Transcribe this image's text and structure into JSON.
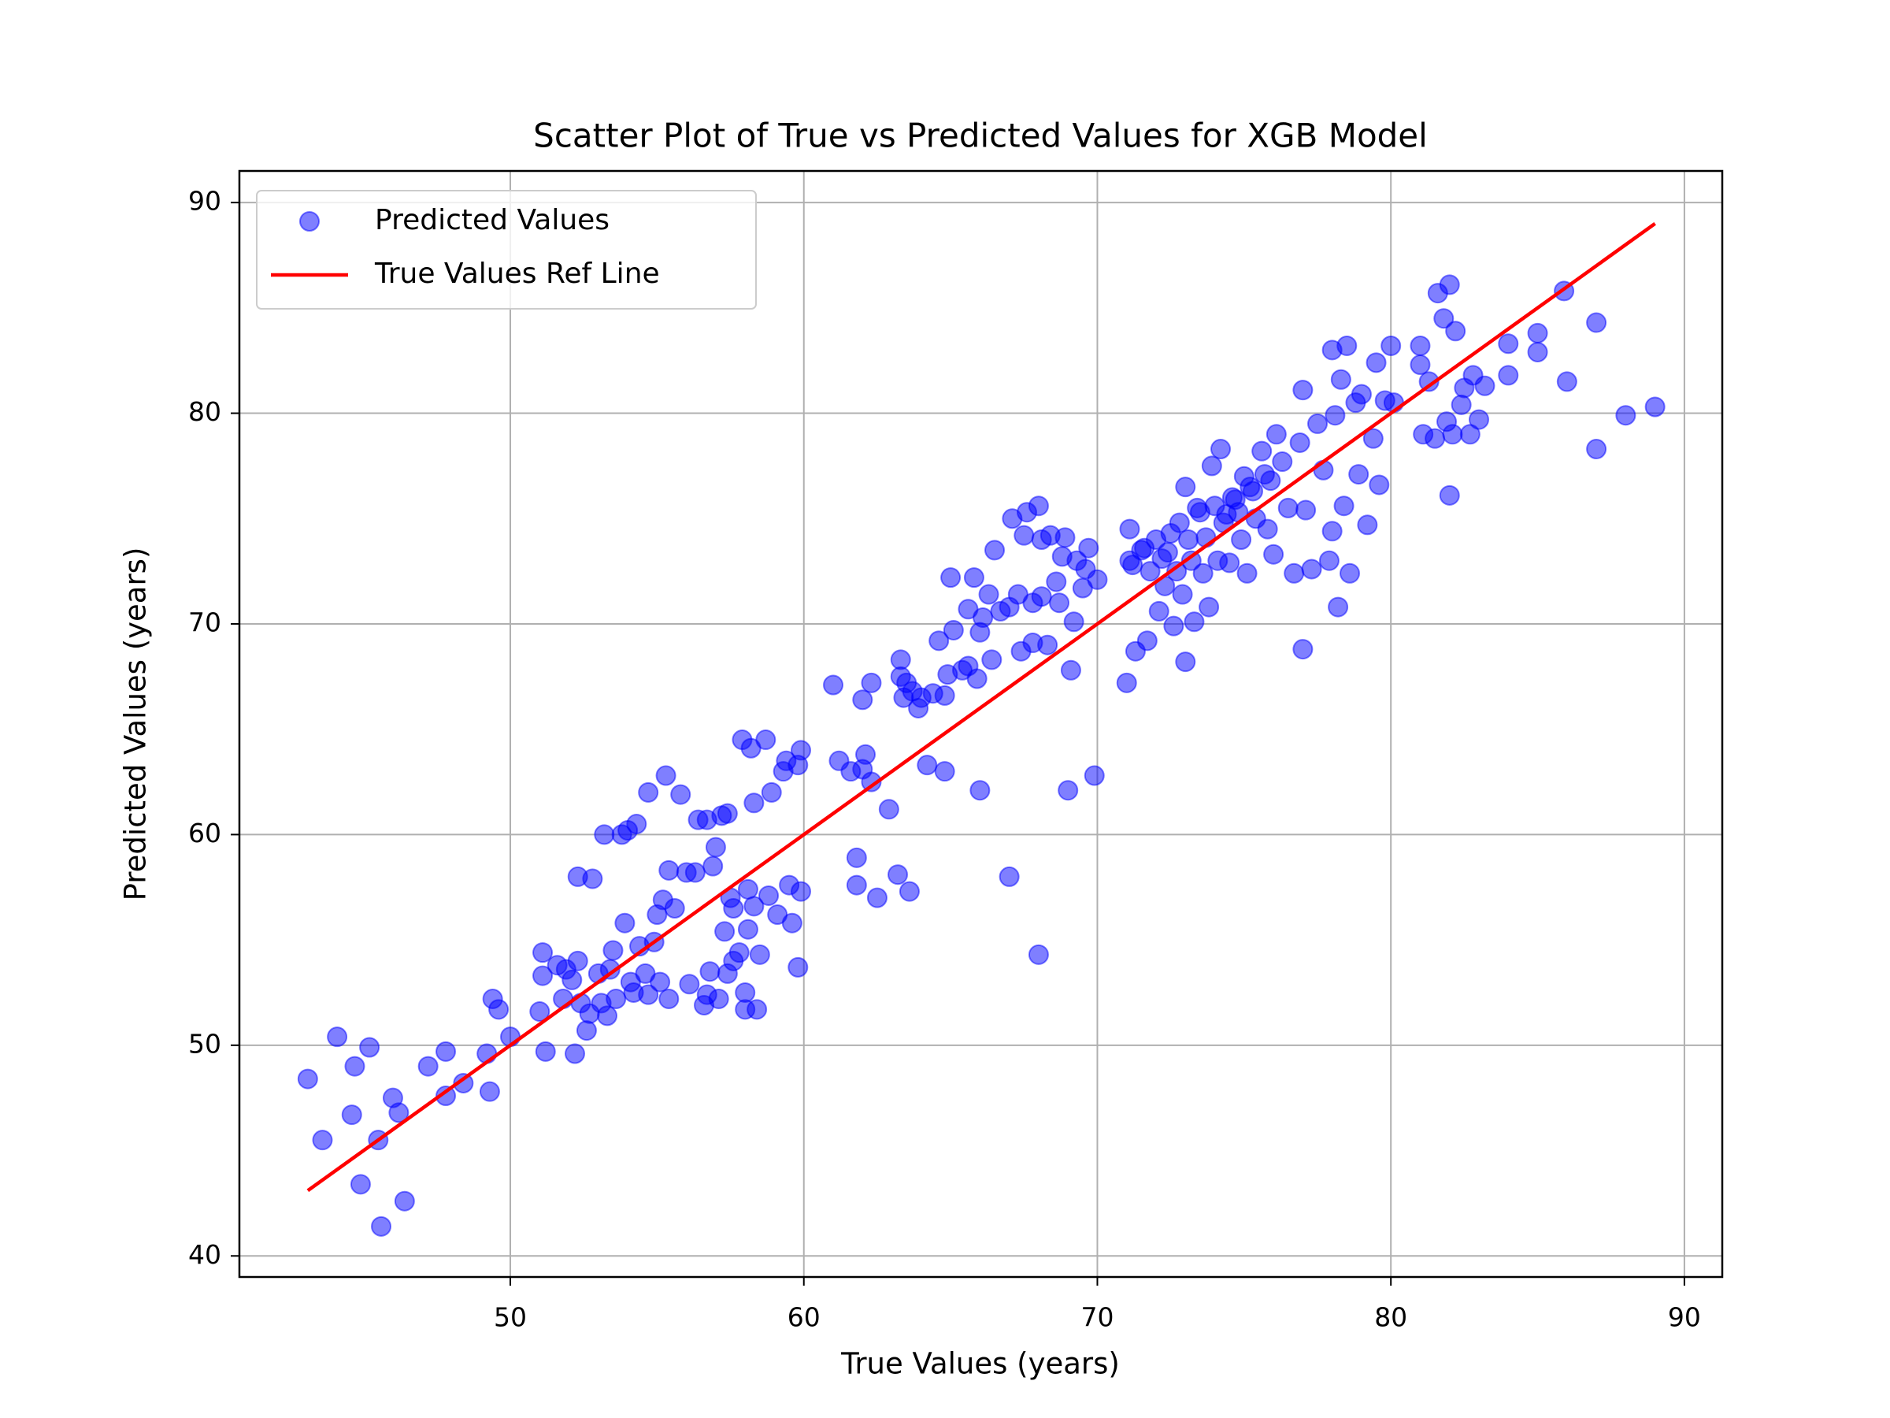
{
  "chart_data": {
    "type": "scatter",
    "title": "Scatter Plot of True vs Predicted Values for XGB Model",
    "x_label": "True Values (years)",
    "y_label": "Predicted Values (years)",
    "xlim": [
      40.77,
      91.29
    ],
    "ylim": [
      39.0,
      91.5
    ],
    "xticks": [
      50,
      60,
      70,
      80,
      90
    ],
    "yticks": [
      40,
      50,
      60,
      70,
      80,
      90
    ],
    "grid": true,
    "legend": "upper left",
    "series": [
      {
        "name": "Predicted Values",
        "type": "scatter",
        "color": "#0000ff",
        "alpha": 0.5,
        "x": [
          43.1,
          43.6,
          44.1,
          44.6,
          44.7,
          44.9,
          45.2,
          45.5,
          45.6,
          46.0,
          46.2,
          46.4,
          47.2,
          47.8,
          47.8,
          48.4,
          49.2,
          49.3,
          49.4,
          49.6,
          50.0,
          51.0,
          51.1,
          51.1,
          51.2,
          51.6,
          51.8,
          51.9,
          52.1,
          52.2,
          52.3,
          52.3,
          52.4,
          52.6,
          52.7,
          52.8,
          53.0,
          53.1,
          53.2,
          53.3,
          53.4,
          53.5,
          53.6,
          53.8,
          53.9,
          54.0,
          54.1,
          54.2,
          54.3,
          54.4,
          54.6,
          54.7,
          54.7,
          54.9,
          55.0,
          55.1,
          55.2,
          55.3,
          55.4,
          55.4,
          55.6,
          55.8,
          56.0,
          56.1,
          56.3,
          56.4,
          56.6,
          56.7,
          56.7,
          56.8,
          56.9,
          57.0,
          57.1,
          57.2,
          57.4,
          57.5,
          57.6,
          57.8,
          57.9,
          57.4,
          58.1,
          58.1,
          58.2,
          58.3,
          58.3,
          58.5,
          58.7,
          58.8,
          58.9,
          58.0,
          59.1,
          59.3,
          59.4,
          59.5,
          59.6,
          59.8,
          59.8,
          59.9,
          59.9,
          58.0,
          58.4,
          57.6,
          57.3,
          61.0,
          61.2,
          61.6,
          61.8,
          61.8,
          62.0,
          62.0,
          62.1,
          62.3,
          62.3,
          62.5,
          62.9,
          63.2,
          63.3,
          63.3,
          63.4,
          63.5,
          63.6,
          63.7,
          63.9,
          64.0,
          64.2,
          64.4,
          64.6,
          64.8,
          64.8,
          64.9,
          65.0,
          65.1,
          65.4,
          65.6,
          65.6,
          65.8,
          65.9,
          66.0,
          66.0,
          66.1,
          66.3,
          66.4,
          66.5,
          66.7,
          67.0,
          67.0,
          67.1,
          67.3,
          67.4,
          67.5,
          67.6,
          67.8,
          67.8,
          68.0,
          68.0,
          68.1,
          68.1,
          68.3,
          68.4,
          68.6,
          68.7,
          68.8,
          68.9,
          69.0,
          69.1,
          69.2,
          69.3,
          69.5,
          69.6,
          69.7,
          69.9,
          70.0,
          71.0,
          71.1,
          71.1,
          71.3,
          71.5,
          71.7,
          71.8,
          72.0,
          72.1,
          72.3,
          72.4,
          72.6,
          72.7,
          72.8,
          72.9,
          73.0,
          73.0,
          73.2,
          73.3,
          73.5,
          73.6,
          73.7,
          73.8,
          73.9,
          74.0,
          74.1,
          74.2,
          74.3,
          74.5,
          74.6,
          74.8,
          74.9,
          75.0,
          75.1,
          75.3,
          75.4,
          75.6,
          75.8,
          75.9,
          76.0,
          76.1,
          76.3,
          76.5,
          76.7,
          76.9,
          77.0,
          77.0,
          77.1,
          77.3,
          77.5,
          77.7,
          77.9,
          78.0,
          78.0,
          78.1,
          78.2,
          78.3,
          78.4,
          78.5,
          78.6,
          78.8,
          78.9,
          79.0,
          79.2,
          79.4,
          79.5,
          79.6,
          79.8,
          80.0,
          80.1,
          81.0,
          81.0,
          81.1,
          81.3,
          81.5,
          81.6,
          81.8,
          81.9,
          82.0,
          82.0,
          82.1,
          82.2,
          82.4,
          82.5,
          82.7,
          82.8,
          83.0,
          83.2,
          84.0,
          84.0,
          85.0,
          85.0,
          85.9,
          86.0,
          87.0,
          87.0,
          88.0,
          89.0,
          71.2,
          71.6,
          72.2,
          72.5,
          73.1,
          73.4,
          74.4,
          74.7,
          75.2,
          75.7
        ],
        "values": [
          48.4,
          45.5,
          50.4,
          46.7,
          49.0,
          43.4,
          49.9,
          45.5,
          41.4,
          47.5,
          46.8,
          42.6,
          49.0,
          47.6,
          49.7,
          48.2,
          49.6,
          47.8,
          52.2,
          51.7,
          50.4,
          51.6,
          53.3,
          54.4,
          49.7,
          53.8,
          52.2,
          53.6,
          53.1,
          49.6,
          54.0,
          58.0,
          52.0,
          50.7,
          51.5,
          57.9,
          53.4,
          52.0,
          60.0,
          51.4,
          53.6,
          54.5,
          52.2,
          60.0,
          55.8,
          60.2,
          53.0,
          52.5,
          60.5,
          54.7,
          53.4,
          62.0,
          52.4,
          54.9,
          56.2,
          53.0,
          56.9,
          62.8,
          58.3,
          52.2,
          56.5,
          61.9,
          58.2,
          52.9,
          58.2,
          60.7,
          51.9,
          60.7,
          52.4,
          53.5,
          58.5,
          59.4,
          52.2,
          60.9,
          53.4,
          57.0,
          54.0,
          54.4,
          64.5,
          61.0,
          57.4,
          55.5,
          64.1,
          61.5,
          56.6,
          54.3,
          64.5,
          57.1,
          62.0,
          51.7,
          56.2,
          63.0,
          63.5,
          57.6,
          55.8,
          53.7,
          63.3,
          64.0,
          57.3,
          52.5,
          51.7,
          56.5,
          55.4,
          67.1,
          63.5,
          63.0,
          58.9,
          57.6,
          63.1,
          66.4,
          63.8,
          67.2,
          62.5,
          57.0,
          61.2,
          58.1,
          67.5,
          68.3,
          66.5,
          67.2,
          57.3,
          66.8,
          66.0,
          66.5,
          63.3,
          66.7,
          69.2,
          63.0,
          66.6,
          67.6,
          72.2,
          69.7,
          67.8,
          68.0,
          70.7,
          72.2,
          67.4,
          62.1,
          69.6,
          70.3,
          71.4,
          68.3,
          73.5,
          70.6,
          58.0,
          70.8,
          75.0,
          71.4,
          68.7,
          74.2,
          75.3,
          69.1,
          71.0,
          54.3,
          75.6,
          74.0,
          71.3,
          69.0,
          74.2,
          72.0,
          71.0,
          73.2,
          74.1,
          62.1,
          67.8,
          70.1,
          73.0,
          71.7,
          72.6,
          73.6,
          62.8,
          72.1,
          67.2,
          73.0,
          74.5,
          68.7,
          73.5,
          69.2,
          72.5,
          74.0,
          70.6,
          71.8,
          73.4,
          69.9,
          72.5,
          74.8,
          71.4,
          68.2,
          76.5,
          73.0,
          70.1,
          75.3,
          72.4,
          74.1,
          70.8,
          77.5,
          75.6,
          73.0,
          78.3,
          74.8,
          72.9,
          76.0,
          75.3,
          74.0,
          77.0,
          72.4,
          76.3,
          75.0,
          78.2,
          74.5,
          76.8,
          73.3,
          79.0,
          77.7,
          75.5,
          72.4,
          78.6,
          68.8,
          81.1,
          75.4,
          72.6,
          79.5,
          77.3,
          73.0,
          83.0,
          74.4,
          79.9,
          70.8,
          81.6,
          75.6,
          83.2,
          72.4,
          80.5,
          77.1,
          80.9,
          74.7,
          78.8,
          82.4,
          76.6,
          80.6,
          83.2,
          80.5,
          83.2,
          82.3,
          79.0,
          81.5,
          78.8,
          85.7,
          84.5,
          79.6,
          86.1,
          76.1,
          79.0,
          83.9,
          80.4,
          81.2,
          79.0,
          81.8,
          79.7,
          81.3,
          83.3,
          81.8,
          83.8,
          82.9,
          85.8,
          81.5,
          84.3,
          78.3,
          79.9,
          80.3,
          72.8,
          73.6,
          73.1,
          74.3,
          74.0,
          75.5,
          75.2,
          75.9,
          76.5,
          77.1
        ]
      },
      {
        "name": "True Values Ref Line",
        "type": "line",
        "color": "#ff0000",
        "x": [
          43.1,
          89.0
        ],
        "values": [
          43.1,
          89.0
        ]
      }
    ]
  }
}
